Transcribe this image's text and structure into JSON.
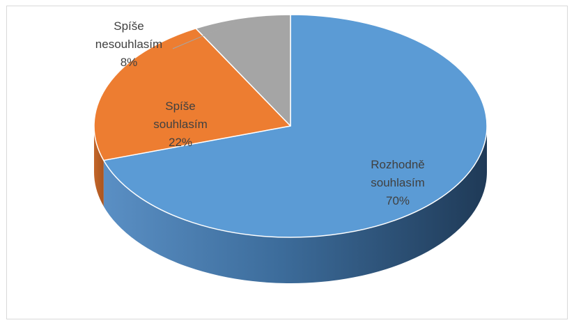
{
  "chart_data": {
    "type": "pie",
    "style": "3d",
    "title": "",
    "slices": [
      {
        "name": "Rozhodně souhlasím",
        "label_lines": [
          "Rozhodně",
          "souhlasím"
        ],
        "value": 70,
        "value_label": "70%",
        "color": "#5b9bd5"
      },
      {
        "name": "Spíše souhlasím",
        "label_lines": [
          "Spíše",
          "souhlasím"
        ],
        "value": 22,
        "value_label": "22%",
        "color": "#ed7d31"
      },
      {
        "name": "Spíše nesouhlasím",
        "label_lines": [
          "Spíše",
          "nesouhlasím"
        ],
        "value": 8,
        "value_label": "8%",
        "color": "#a5a5a5"
      }
    ],
    "start_angle": "top",
    "direction": "clockwise",
    "legend": "none",
    "data_labels": "category-and-percent"
  }
}
